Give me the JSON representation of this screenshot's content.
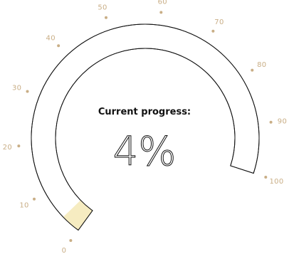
{
  "gauge": {
    "title": "Current progress:",
    "value_text": "4%",
    "progress_fraction": 0.04,
    "ticks": [
      "0",
      "10",
      "20",
      "30",
      "40",
      "50",
      "60",
      "70",
      "80",
      "90",
      "100"
    ],
    "colors": {
      "fill": "#f6ecc1",
      "track_stroke": "#111111",
      "tick": "#c9ae86",
      "text": "#111111"
    }
  }
}
